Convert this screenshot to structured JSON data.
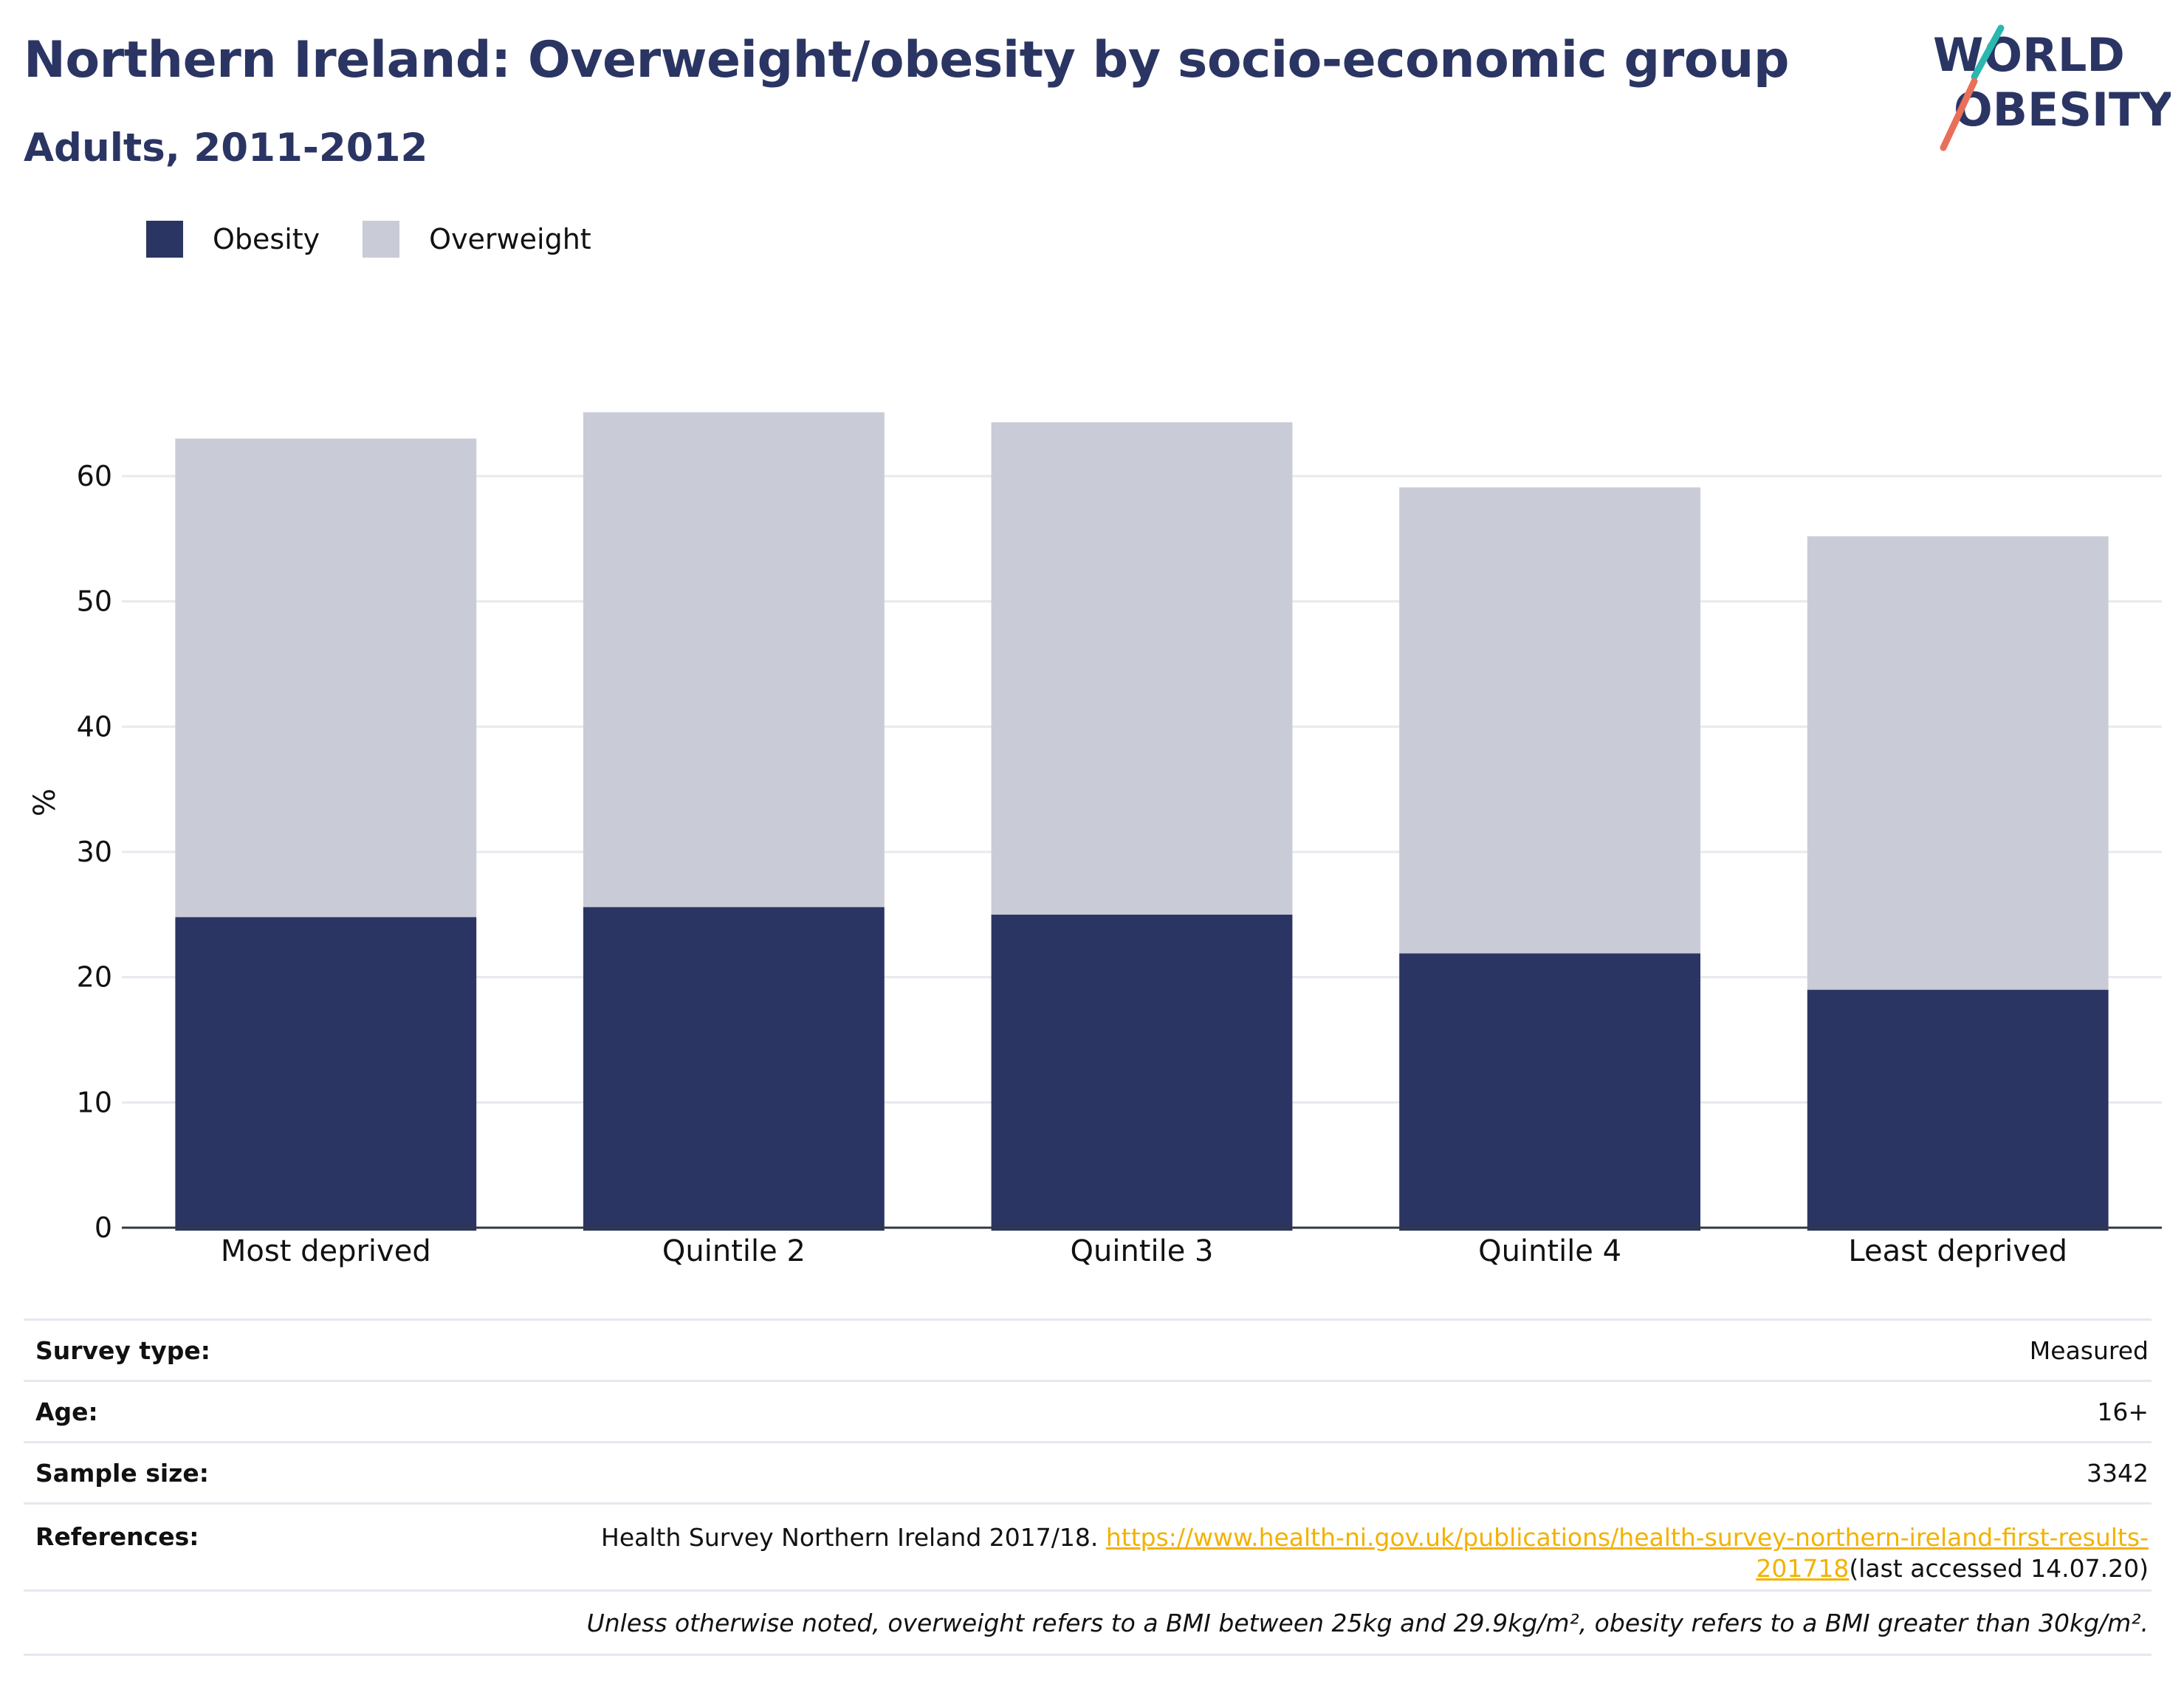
{
  "header": {
    "title": "Northern Ireland: Overweight/obesity by socio-economic group",
    "subtitle": "Adults, 2011-2012"
  },
  "logo": {
    "line1": "WORLD",
    "line2": "OBESITY"
  },
  "legend": {
    "items": [
      {
        "label": "Obesity",
        "color": "#2b3563"
      },
      {
        "label": "Overweight",
        "color": "#c9cbd6"
      }
    ]
  },
  "chart_data": {
    "type": "bar",
    "stacked": true,
    "categories": [
      "Most deprived",
      "Quintile 2",
      "Quintile 3",
      "Quintile 4",
      "Least deprived"
    ],
    "series": [
      {
        "name": "Obesity",
        "color": "#2b3563",
        "values": [
          24.8,
          25.6,
          25.0,
          21.9,
          19.0
        ]
      },
      {
        "name": "Overweight",
        "color": "#c9cbd6",
        "values": [
          38.2,
          39.5,
          39.3,
          37.2,
          36.2
        ]
      }
    ],
    "ylabel": "%",
    "ylim": [
      0,
      70
    ],
    "yticks": [
      0,
      10,
      20,
      30,
      40,
      50,
      60
    ],
    "grid": true
  },
  "meta": {
    "survey_type_label": "Survey type:",
    "survey_type_value": "Measured",
    "age_label": "Age:",
    "age_value": "16+",
    "sample_size_label": "Sample size:",
    "sample_size_value": "3342",
    "references_label": "References:",
    "references_text": "Health Survey Northern Ireland 2017/18. ",
    "references_link_part1": "https://www.health-ni.gov.uk/publications/health-survey-northern-ireland-first-results-",
    "references_link_part2": "201718",
    "references_suffix": "(last accessed 14.07.20)",
    "note": "Unless otherwise noted, overweight refers to a BMI between 25kg and 29.9kg/m², obesity refers to a BMI greater than 30kg/m²."
  }
}
